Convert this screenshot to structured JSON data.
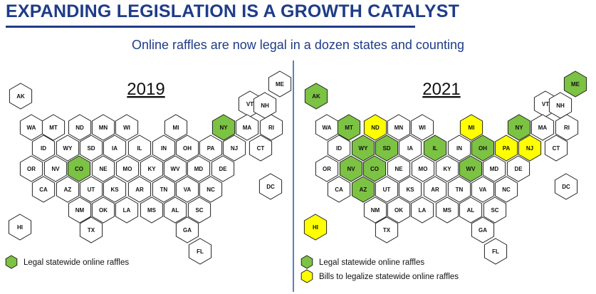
{
  "header": {
    "title": "EXPANDING LEGISLATION IS A GROWTH CATALYST",
    "subtitle": "Online raffles are now legal in a dozen states and counting"
  },
  "colors": {
    "legal": "#7cc243",
    "bills": "#ffff00",
    "none": "#ffffff",
    "title": "#1f3c88"
  },
  "maps": [
    {
      "year": "2019",
      "states": [
        {
          "id": "AK",
          "status": "none"
        },
        {
          "id": "ME",
          "status": "none"
        },
        {
          "id": "VT",
          "status": "none"
        },
        {
          "id": "NH",
          "status": "none"
        },
        {
          "id": "WA",
          "status": "none"
        },
        {
          "id": "MT",
          "status": "none"
        },
        {
          "id": "ND",
          "status": "none"
        },
        {
          "id": "MN",
          "status": "none"
        },
        {
          "id": "WI",
          "status": "none"
        },
        {
          "id": "MI",
          "status": "none"
        },
        {
          "id": "NY",
          "status": "legal"
        },
        {
          "id": "MA",
          "status": "none"
        },
        {
          "id": "RI",
          "status": "none"
        },
        {
          "id": "ID",
          "status": "none"
        },
        {
          "id": "WY",
          "status": "none"
        },
        {
          "id": "SD",
          "status": "none"
        },
        {
          "id": "IA",
          "status": "none"
        },
        {
          "id": "IL",
          "status": "none"
        },
        {
          "id": "IN",
          "status": "none"
        },
        {
          "id": "OH",
          "status": "none"
        },
        {
          "id": "PA",
          "status": "none"
        },
        {
          "id": "NJ",
          "status": "none"
        },
        {
          "id": "CT",
          "status": "none"
        },
        {
          "id": "OR",
          "status": "none"
        },
        {
          "id": "NV",
          "status": "none"
        },
        {
          "id": "CO",
          "status": "legal"
        },
        {
          "id": "NE",
          "status": "none"
        },
        {
          "id": "MO",
          "status": "none"
        },
        {
          "id": "KY",
          "status": "none"
        },
        {
          "id": "WV",
          "status": "none"
        },
        {
          "id": "MD",
          "status": "none"
        },
        {
          "id": "DE",
          "status": "none"
        },
        {
          "id": "CA",
          "status": "none"
        },
        {
          "id": "AZ",
          "status": "none"
        },
        {
          "id": "UT",
          "status": "none"
        },
        {
          "id": "KS",
          "status": "none"
        },
        {
          "id": "AR",
          "status": "none"
        },
        {
          "id": "TN",
          "status": "none"
        },
        {
          "id": "VA",
          "status": "none"
        },
        {
          "id": "NC",
          "status": "none"
        },
        {
          "id": "DC",
          "status": "none"
        },
        {
          "id": "NM",
          "status": "none"
        },
        {
          "id": "OK",
          "status": "none"
        },
        {
          "id": "LA",
          "status": "none"
        },
        {
          "id": "MS",
          "status": "none"
        },
        {
          "id": "AL",
          "status": "none"
        },
        {
          "id": "SC",
          "status": "none"
        },
        {
          "id": "HI",
          "status": "none"
        },
        {
          "id": "TX",
          "status": "none"
        },
        {
          "id": "GA",
          "status": "none"
        },
        {
          "id": "FL",
          "status": "none"
        }
      ],
      "legend": [
        {
          "status": "legal",
          "label": "Legal statewide online raffles"
        }
      ]
    },
    {
      "year": "2021",
      "states": [
        {
          "id": "AK",
          "status": "legal"
        },
        {
          "id": "ME",
          "status": "legal"
        },
        {
          "id": "VT",
          "status": "none"
        },
        {
          "id": "NH",
          "status": "none"
        },
        {
          "id": "WA",
          "status": "none"
        },
        {
          "id": "MT",
          "status": "legal"
        },
        {
          "id": "ND",
          "status": "bills"
        },
        {
          "id": "MN",
          "status": "none"
        },
        {
          "id": "WI",
          "status": "none"
        },
        {
          "id": "MI",
          "status": "bills"
        },
        {
          "id": "NY",
          "status": "legal"
        },
        {
          "id": "MA",
          "status": "none"
        },
        {
          "id": "RI",
          "status": "none"
        },
        {
          "id": "ID",
          "status": "none"
        },
        {
          "id": "WY",
          "status": "legal"
        },
        {
          "id": "SD",
          "status": "legal"
        },
        {
          "id": "IA",
          "status": "none"
        },
        {
          "id": "IL",
          "status": "legal"
        },
        {
          "id": "IN",
          "status": "none"
        },
        {
          "id": "OH",
          "status": "legal"
        },
        {
          "id": "PA",
          "status": "bills"
        },
        {
          "id": "NJ",
          "status": "bills"
        },
        {
          "id": "CT",
          "status": "none"
        },
        {
          "id": "OR",
          "status": "none"
        },
        {
          "id": "NV",
          "status": "legal"
        },
        {
          "id": "CO",
          "status": "legal"
        },
        {
          "id": "NE",
          "status": "none"
        },
        {
          "id": "MO",
          "status": "none"
        },
        {
          "id": "KY",
          "status": "none"
        },
        {
          "id": "WV",
          "status": "legal"
        },
        {
          "id": "MD",
          "status": "none"
        },
        {
          "id": "DE",
          "status": "none"
        },
        {
          "id": "CA",
          "status": "none"
        },
        {
          "id": "AZ",
          "status": "legal"
        },
        {
          "id": "UT",
          "status": "none"
        },
        {
          "id": "KS",
          "status": "none"
        },
        {
          "id": "AR",
          "status": "none"
        },
        {
          "id": "TN",
          "status": "none"
        },
        {
          "id": "VA",
          "status": "none"
        },
        {
          "id": "NC",
          "status": "none"
        },
        {
          "id": "DC",
          "status": "none"
        },
        {
          "id": "NM",
          "status": "none"
        },
        {
          "id": "OK",
          "status": "none"
        },
        {
          "id": "LA",
          "status": "none"
        },
        {
          "id": "MS",
          "status": "none"
        },
        {
          "id": "AL",
          "status": "none"
        },
        {
          "id": "SC",
          "status": "none"
        },
        {
          "id": "HI",
          "status": "bills"
        },
        {
          "id": "TX",
          "status": "none"
        },
        {
          "id": "GA",
          "status": "none"
        },
        {
          "id": "FL",
          "status": "none"
        }
      ],
      "legend": [
        {
          "status": "legal",
          "label": "Legal statewide online raffles"
        },
        {
          "status": "bills",
          "label": "Bills to legalize statewide online raffles"
        }
      ]
    }
  ]
}
